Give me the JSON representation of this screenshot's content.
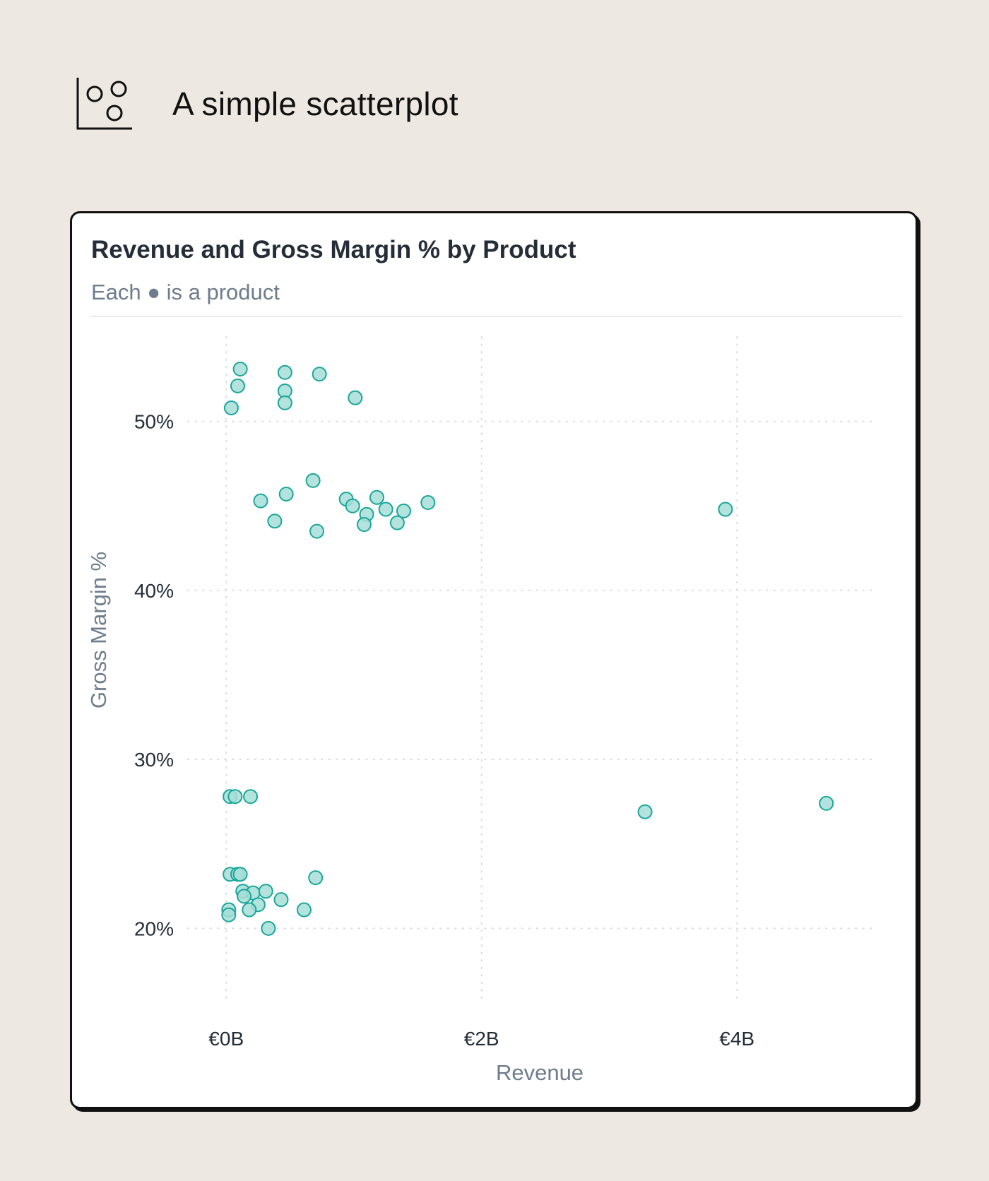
{
  "page": {
    "title": "A simple scatterplot",
    "icon": "scatterplot-icon"
  },
  "chart_data": {
    "type": "scatter",
    "title": "Revenue and Gross Margin % by Product",
    "subtitle": "Each ● is a product",
    "xlabel": "Revenue",
    "ylabel": "Gross Margin %",
    "xlim": [
      -0.3,
      5.1
    ],
    "ylim": [
      15.5,
      55
    ],
    "xticks": [
      0,
      2,
      4
    ],
    "xtick_labels": [
      "€0B",
      "€2B",
      "€4B"
    ],
    "yticks": [
      20,
      30,
      40,
      50
    ],
    "ytick_labels": [
      "20%",
      "30%",
      "40%",
      "50%"
    ],
    "grid": true,
    "colors": {
      "marker_fill": "#a7ded7",
      "marker_stroke": "#1aa79a",
      "grid": "#d9dde2"
    },
    "points": [
      [
        0.11,
        53.1
      ],
      [
        0.09,
        52.1
      ],
      [
        0.46,
        52.9
      ],
      [
        0.73,
        52.8
      ],
      [
        0.46,
        51.8
      ],
      [
        0.46,
        51.1
      ],
      [
        0.04,
        50.8
      ],
      [
        1.01,
        51.4
      ],
      [
        0.68,
        46.5
      ],
      [
        0.47,
        45.7
      ],
      [
        0.27,
        45.3
      ],
      [
        0.94,
        45.4
      ],
      [
        1.18,
        45.5
      ],
      [
        1.58,
        45.2
      ],
      [
        0.99,
        45.0
      ],
      [
        1.25,
        44.8
      ],
      [
        1.39,
        44.7
      ],
      [
        1.1,
        44.5
      ],
      [
        0.38,
        44.1
      ],
      [
        1.08,
        43.9
      ],
      [
        1.34,
        44.0
      ],
      [
        0.71,
        43.5
      ],
      [
        3.91,
        44.8
      ],
      [
        0.03,
        27.8
      ],
      [
        0.07,
        27.8
      ],
      [
        0.19,
        27.8
      ],
      [
        3.28,
        26.9
      ],
      [
        4.7,
        27.4
      ],
      [
        0.03,
        23.2
      ],
      [
        0.09,
        23.2
      ],
      [
        0.11,
        23.2
      ],
      [
        0.7,
        23.0
      ],
      [
        0.13,
        22.2
      ],
      [
        0.21,
        22.1
      ],
      [
        0.31,
        22.2
      ],
      [
        0.14,
        21.9
      ],
      [
        0.43,
        21.7
      ],
      [
        0.25,
        21.4
      ],
      [
        0.02,
        21.1
      ],
      [
        0.18,
        21.1
      ],
      [
        0.61,
        21.1
      ],
      [
        0.02,
        20.8
      ],
      [
        0.33,
        20.0
      ]
    ]
  }
}
